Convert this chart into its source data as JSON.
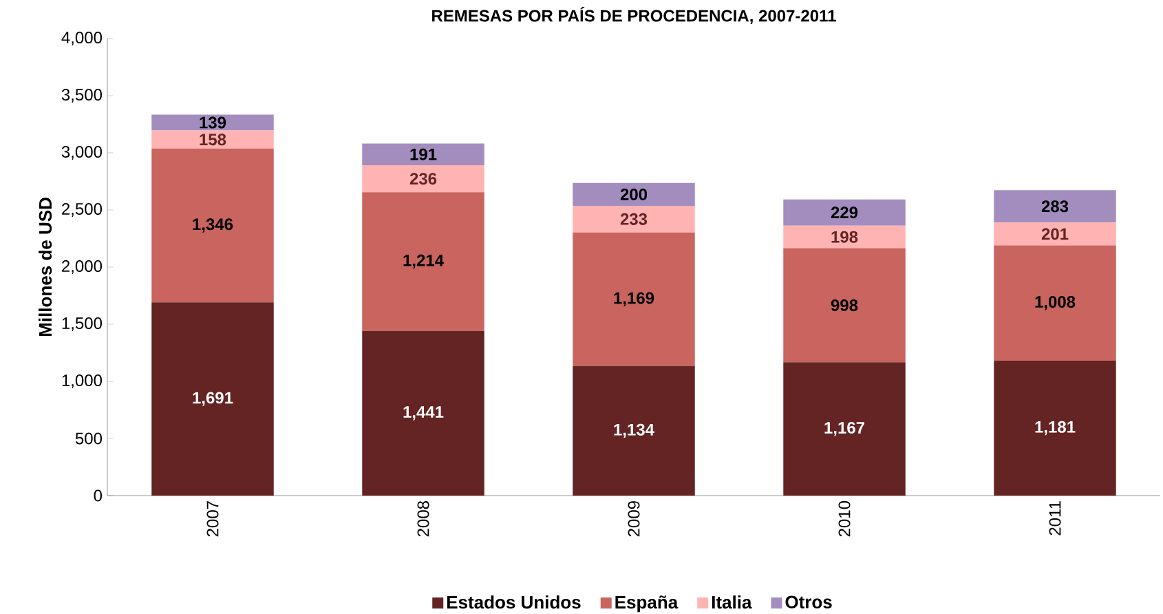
{
  "chart_data": {
    "type": "bar",
    "stacked": true,
    "title": "REMESAS POR PAÍS DE PROCEDENCIA, 2007-2011",
    "ylabel": "Millones de USD",
    "categories": [
      "2007",
      "2008",
      "2009",
      "2010",
      "2011"
    ],
    "series": [
      {
        "name": "Estados Unidos",
        "color": "#632423",
        "values": [
          1691,
          1441,
          1134,
          1167,
          1181
        ],
        "value_labels": [
          "1,691",
          "1,441",
          "1,134",
          "1,167",
          "1,181"
        ]
      },
      {
        "name": "España",
        "color": "#c9645f",
        "values": [
          1346,
          1214,
          1169,
          998,
          1008
        ],
        "value_labels": [
          "1,346",
          "1,214",
          "1,169",
          "998",
          "1,008"
        ]
      },
      {
        "name": "Italia",
        "color": "#ffb3b3",
        "values": [
          158,
          236,
          233,
          198,
          201
        ],
        "value_labels": [
          "158",
          "236",
          "233",
          "198",
          "201"
        ]
      },
      {
        "name": "Otros",
        "color": "#a38dbf",
        "values": [
          139,
          191,
          200,
          229,
          283
        ],
        "value_labels": [
          "139",
          "191",
          "200",
          "229",
          "283"
        ]
      }
    ],
    "ylim": [
      0,
      4000
    ],
    "yticks": [
      0,
      500,
      {
        "value": 1000,
        "label": "1,000"
      },
      {
        "value": 1500,
        "label": "1,500"
      },
      {
        "value": 2000,
        "label": "2,000"
      },
      {
        "value": 2500,
        "label": "2,500"
      },
      {
        "value": 3000,
        "label": "3,000"
      },
      {
        "value": 3500,
        "label": "3,500"
      },
      {
        "value": 4000,
        "label": "4,000"
      }
    ],
    "legend": "bottom"
  }
}
